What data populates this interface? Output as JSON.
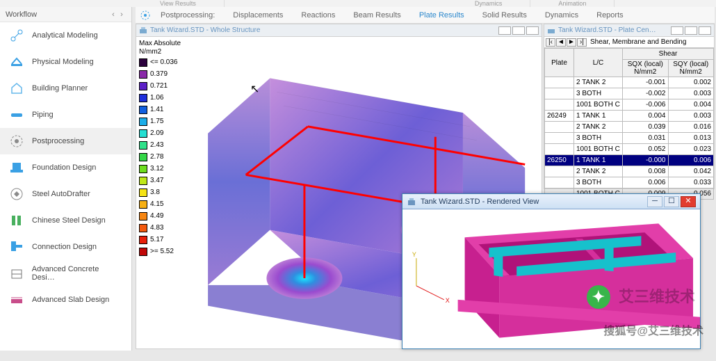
{
  "top_tabs": [
    "View Results",
    "Dynamics",
    "Animation"
  ],
  "workflow_label": "Workflow",
  "workflow_items": [
    {
      "label": "Analytical Modeling",
      "icon": "analytical",
      "color": "#3aa0e4"
    },
    {
      "label": "Physical Modeling",
      "icon": "physical",
      "color": "#3aa0e4"
    },
    {
      "label": "Building Planner",
      "icon": "building",
      "color": "#66b8ec"
    },
    {
      "label": "Piping",
      "icon": "piping",
      "color": "#3aa0e4"
    },
    {
      "label": "Postprocessing",
      "icon": "postproc",
      "color": "#8b8b8b",
      "active": true
    },
    {
      "label": "Foundation Design",
      "icon": "foundation",
      "color": "#3aa0e4"
    },
    {
      "label": "Steel AutoDrafter",
      "icon": "autodraft",
      "color": "#8b8b8b"
    },
    {
      "label": "Chinese Steel Design",
      "icon": "chinese",
      "color": "#49b05f"
    },
    {
      "label": "Connection Design",
      "icon": "connection",
      "color": "#3aa0e4"
    },
    {
      "label": "Advanced Concrete Desi…",
      "icon": "advconc",
      "color": "#777"
    },
    {
      "label": "Advanced Slab Design",
      "icon": "advslab",
      "color": "#c84d8a"
    }
  ],
  "tab_section_label": "Postprocessing:",
  "tabs": [
    "Displacements",
    "Reactions",
    "Beam Results",
    "Plate Results",
    "Solid Results",
    "Dynamics",
    "Reports"
  ],
  "tab_selected_index": 3,
  "main_window_title": "Tank Wizard.STD - Whole Structure",
  "side_window_title": "Tank Wizard.STD - Plate Cen…",
  "legend": {
    "title1": "Max Absolute",
    "title2": "N/mm2",
    "rows": [
      {
        "label": "<= 0.036",
        "color": "#2b003d"
      },
      {
        "label": "0.379",
        "color": "#8a2aa9"
      },
      {
        "label": "0.721",
        "color": "#5c20c7"
      },
      {
        "label": "1.06",
        "color": "#1f2fdc"
      },
      {
        "label": "1.41",
        "color": "#1260e0"
      },
      {
        "label": "1.75",
        "color": "#1caee9"
      },
      {
        "label": "2.09",
        "color": "#24dfd2"
      },
      {
        "label": "2.43",
        "color": "#2fe18a"
      },
      {
        "label": "2.78",
        "color": "#34d747"
      },
      {
        "label": "3.12",
        "color": "#6ede1f"
      },
      {
        "label": "3.47",
        "color": "#bfe81a"
      },
      {
        "label": "3.8",
        "color": "#f5e416"
      },
      {
        "label": "4.15",
        "color": "#f7b014"
      },
      {
        "label": "4.49",
        "color": "#f68511"
      },
      {
        "label": "4.83",
        "color": "#f45a0e"
      },
      {
        "label": "5.17",
        "color": "#e8200a"
      },
      {
        "label": ">= 5.52",
        "color": "#c10808"
      }
    ]
  },
  "side_table": {
    "caption": "Shear, Membrane and Bending",
    "group_header": "Shear",
    "col_plate": "Plate",
    "col_lc": "L/C",
    "col_sqx": "SQX (local)\nN/mm2",
    "col_sqy": "SQY (local)\nN/mm2",
    "rows": [
      {
        "plate": "",
        "lc": "2 TANK 2",
        "sqx": "-0.001",
        "sqy": "0.002"
      },
      {
        "plate": "",
        "lc": "3 BOTH",
        "sqx": "-0.002",
        "sqy": "0.003"
      },
      {
        "plate": "",
        "lc": "1001 BOTH C",
        "sqx": "-0.006",
        "sqy": "0.004"
      },
      {
        "plate": "26249",
        "lc": "1 TANK 1",
        "sqx": "0.004",
        "sqy": "0.003"
      },
      {
        "plate": "",
        "lc": "2 TANK 2",
        "sqx": "0.039",
        "sqy": "0.016"
      },
      {
        "plate": "",
        "lc": "3 BOTH",
        "sqx": "0.031",
        "sqy": "0.013"
      },
      {
        "plate": "",
        "lc": "1001 BOTH C",
        "sqx": "0.052",
        "sqy": "0.023"
      },
      {
        "plate": "26250",
        "lc": "1 TANK 1",
        "sqx": "-0.000",
        "sqy": "0.006",
        "selected": true
      },
      {
        "plate": "",
        "lc": "2 TANK 2",
        "sqx": "0.008",
        "sqy": "0.042"
      },
      {
        "plate": "",
        "lc": "3 BOTH",
        "sqx": "0.006",
        "sqy": "0.033"
      },
      {
        "plate": "",
        "lc": "1001 BOTH C",
        "sqx": "0.009",
        "sqy": "0.056"
      }
    ]
  },
  "rendered_window_title": "Tank Wizard.STD - Rendered View",
  "rendered": {
    "tank_color": "#e23ea9",
    "beam_color": "#16c1cc",
    "axis_x_color": "#e01010",
    "axis_y_color": "#c8a800"
  },
  "watermark1": "艾三维技术",
  "watermark2": "搜狐号@艾三维技术"
}
